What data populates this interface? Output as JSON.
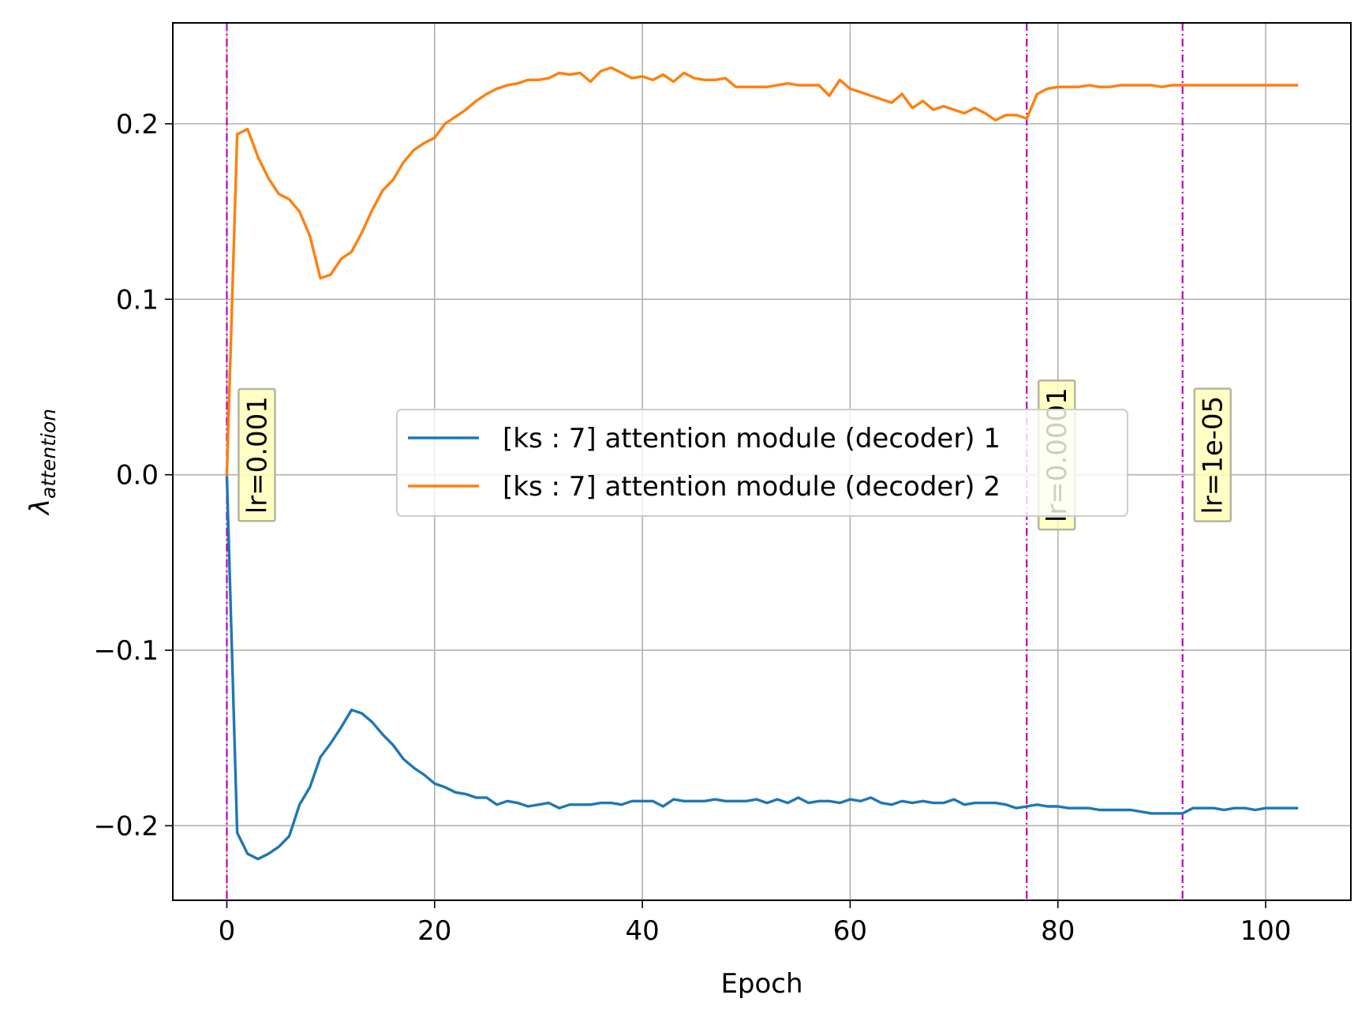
{
  "chart_data": {
    "type": "line",
    "title": "",
    "xlabel": "Epoch",
    "ylabel_symbol": "λ",
    "ylabel_subscript": "attention",
    "xlim": [
      -5.2,
      108.2
    ],
    "ylim": [
      -0.2425,
      0.2575
    ],
    "xticks": [
      0,
      20,
      40,
      60,
      80,
      100
    ],
    "xtick_labels": [
      "0",
      "20",
      "40",
      "60",
      "80",
      "100"
    ],
    "yticks": [
      -0.2,
      -0.1,
      0.0,
      0.1,
      0.2
    ],
    "ytick_labels": [
      "−0.2",
      "−0.1",
      "0.0",
      "0.1",
      "0.2"
    ],
    "grid": true,
    "legend_position": "center-right",
    "series": [
      {
        "name": "[ks : 7] attention module (decoder) 1",
        "color": "#1f77b4",
        "x": [
          0,
          1,
          2,
          3,
          4,
          5,
          6,
          7,
          8,
          9,
          10,
          11,
          12,
          13,
          14,
          15,
          16,
          17,
          18,
          19,
          20,
          21,
          22,
          23,
          24,
          25,
          26,
          27,
          28,
          29,
          30,
          31,
          32,
          33,
          34,
          35,
          36,
          37,
          38,
          39,
          40,
          41,
          42,
          43,
          44,
          45,
          46,
          47,
          48,
          49,
          50,
          51,
          52,
          53,
          54,
          55,
          56,
          57,
          58,
          59,
          60,
          61,
          62,
          63,
          64,
          65,
          66,
          67,
          68,
          69,
          70,
          71,
          72,
          73,
          74,
          75,
          76,
          77,
          78,
          79,
          80,
          81,
          82,
          83,
          84,
          85,
          86,
          87,
          88,
          89,
          90,
          91,
          92,
          93,
          94,
          95,
          96,
          97,
          98,
          99,
          100,
          101,
          102,
          103
        ],
        "y": [
          0.0,
          -0.204,
          -0.216,
          -0.219,
          -0.216,
          -0.212,
          -0.206,
          -0.188,
          -0.178,
          -0.161,
          -0.153,
          -0.144,
          -0.134,
          -0.136,
          -0.141,
          -0.148,
          -0.154,
          -0.162,
          -0.167,
          -0.171,
          -0.176,
          -0.178,
          -0.181,
          -0.182,
          -0.184,
          -0.184,
          -0.188,
          -0.186,
          -0.187,
          -0.189,
          -0.188,
          -0.187,
          -0.19,
          -0.188,
          -0.188,
          -0.188,
          -0.187,
          -0.187,
          -0.188,
          -0.186,
          -0.186,
          -0.186,
          -0.189,
          -0.185,
          -0.186,
          -0.186,
          -0.186,
          -0.185,
          -0.186,
          -0.186,
          -0.186,
          -0.185,
          -0.187,
          -0.185,
          -0.187,
          -0.184,
          -0.187,
          -0.186,
          -0.186,
          -0.187,
          -0.185,
          -0.186,
          -0.184,
          -0.187,
          -0.188,
          -0.186,
          -0.187,
          -0.186,
          -0.187,
          -0.187,
          -0.185,
          -0.188,
          -0.187,
          -0.187,
          -0.187,
          -0.188,
          -0.19,
          -0.189,
          -0.188,
          -0.189,
          -0.189,
          -0.19,
          -0.19,
          -0.19,
          -0.191,
          -0.191,
          -0.191,
          -0.191,
          -0.192,
          -0.193,
          -0.193,
          -0.193,
          -0.193,
          -0.19,
          -0.19,
          -0.19,
          -0.191,
          -0.19,
          -0.19,
          -0.191,
          -0.19,
          -0.19,
          -0.19,
          -0.19
        ]
      },
      {
        "name": "[ks : 7] attention module (decoder) 2",
        "color": "#ff7f0e",
        "x": [
          0,
          1,
          2,
          3,
          4,
          5,
          6,
          7,
          8,
          9,
          10,
          11,
          12,
          13,
          14,
          15,
          16,
          17,
          18,
          19,
          20,
          21,
          22,
          23,
          24,
          25,
          26,
          27,
          28,
          29,
          30,
          31,
          32,
          33,
          34,
          35,
          36,
          37,
          38,
          39,
          40,
          41,
          42,
          43,
          44,
          45,
          46,
          47,
          48,
          49,
          50,
          51,
          52,
          53,
          54,
          55,
          56,
          57,
          58,
          59,
          60,
          61,
          62,
          63,
          64,
          65,
          66,
          67,
          68,
          69,
          70,
          71,
          72,
          73,
          74,
          75,
          76,
          77,
          78,
          79,
          80,
          81,
          82,
          83,
          84,
          85,
          86,
          87,
          88,
          89,
          90,
          91,
          92,
          93,
          94,
          95,
          96,
          97,
          98,
          99,
          100,
          101,
          102,
          103
        ],
        "y": [
          0.0,
          0.194,
          0.197,
          0.181,
          0.169,
          0.16,
          0.157,
          0.15,
          0.136,
          0.112,
          0.114,
          0.123,
          0.127,
          0.138,
          0.151,
          0.162,
          0.168,
          0.178,
          0.185,
          0.189,
          0.192,
          0.2,
          0.204,
          0.208,
          0.213,
          0.217,
          0.22,
          0.222,
          0.223,
          0.225,
          0.225,
          0.226,
          0.229,
          0.228,
          0.229,
          0.224,
          0.23,
          0.232,
          0.229,
          0.226,
          0.227,
          0.225,
          0.228,
          0.224,
          0.229,
          0.226,
          0.225,
          0.225,
          0.226,
          0.221,
          0.221,
          0.221,
          0.221,
          0.222,
          0.223,
          0.222,
          0.222,
          0.222,
          0.216,
          0.225,
          0.22,
          0.218,
          0.216,
          0.214,
          0.212,
          0.217,
          0.209,
          0.213,
          0.208,
          0.21,
          0.208,
          0.206,
          0.209,
          0.206,
          0.202,
          0.205,
          0.205,
          0.203,
          0.217,
          0.22,
          0.221,
          0.221,
          0.221,
          0.222,
          0.221,
          0.221,
          0.222,
          0.222,
          0.222,
          0.222,
          0.221,
          0.222,
          0.222,
          0.222,
          0.222,
          0.222,
          0.222,
          0.222,
          0.222,
          0.222,
          0.222,
          0.222,
          0.222,
          0.222
        ]
      }
    ],
    "vlines": [
      {
        "x": 0,
        "label": "lr=0.001",
        "color": "#bf00bf"
      },
      {
        "x": 77,
        "label": "lr=0.0001",
        "color": "#bf00bf"
      },
      {
        "x": 92,
        "label": "lr=1e-05",
        "color": "#bf00bf"
      }
    ],
    "annotation_box_color": "#ffffba"
  }
}
